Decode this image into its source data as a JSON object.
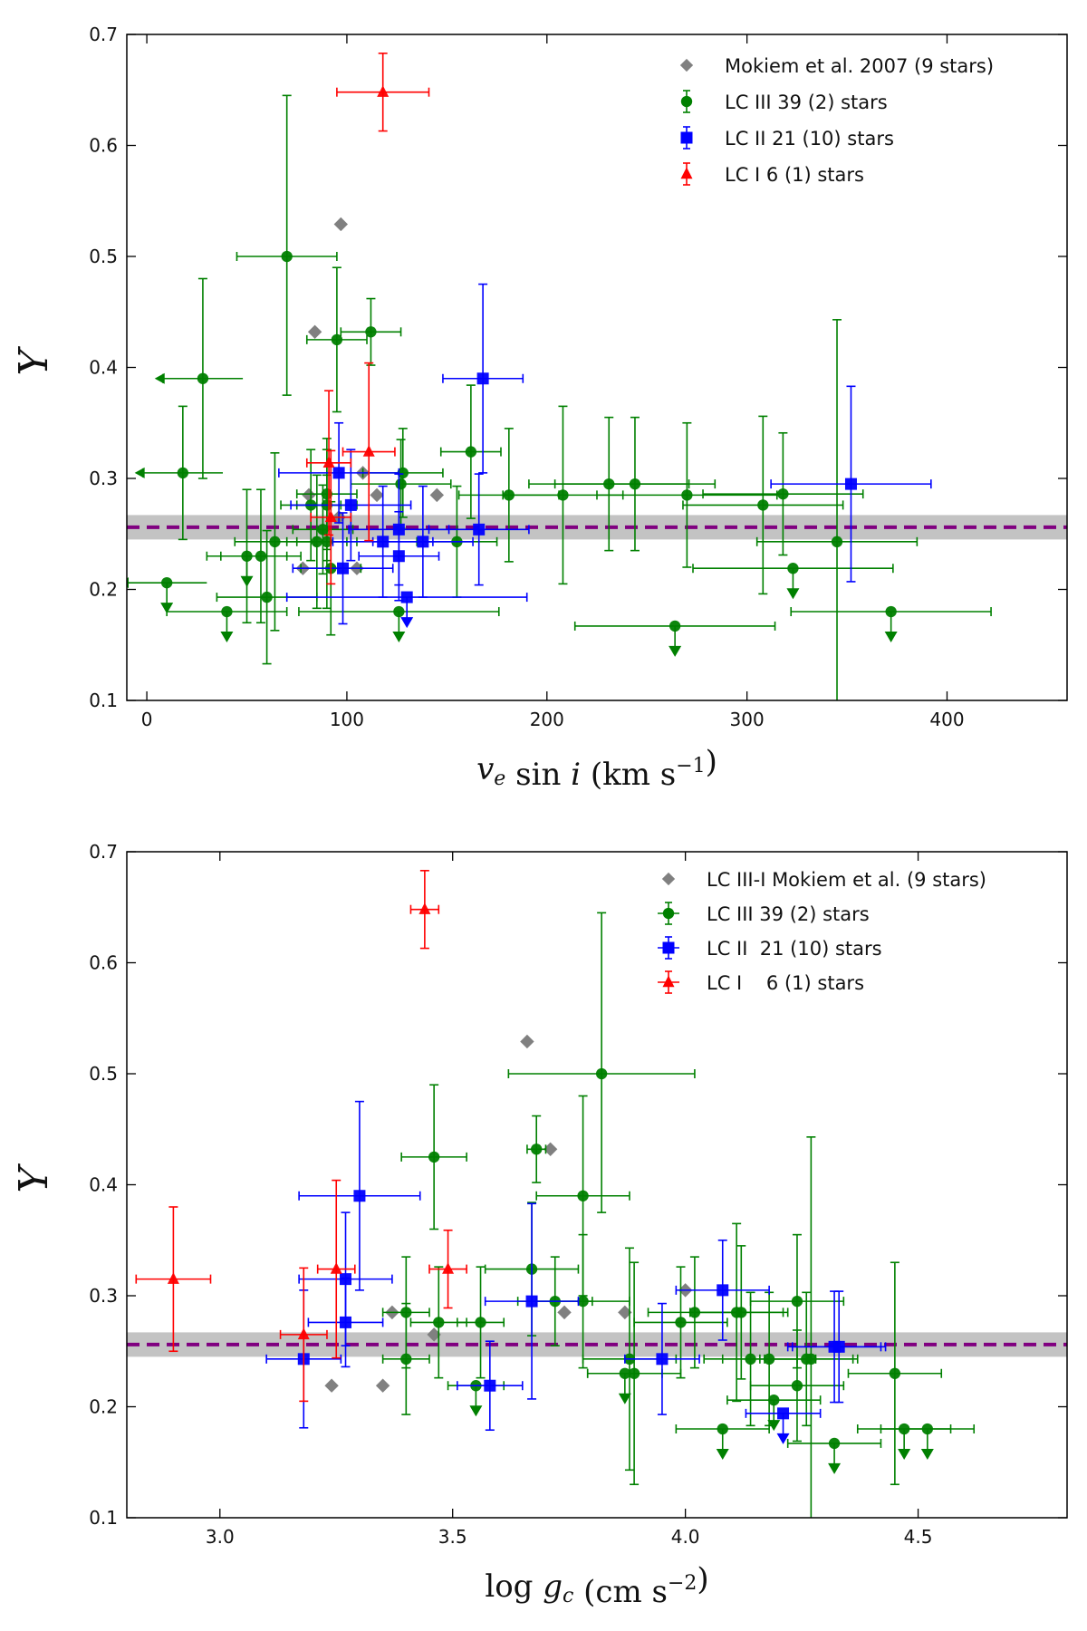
{
  "chart_data": [
    {
      "type": "scatter",
      "title": "",
      "xlabel": "v_e sin i (km s^-1)",
      "ylabel": "Y",
      "xlim": [
        -10,
        460
      ],
      "ylim": [
        0.1,
        0.7
      ],
      "xticks": [
        0,
        100,
        200,
        300,
        400
      ],
      "yticks": [
        0.1,
        0.2,
        0.3,
        0.4,
        0.5,
        0.6,
        0.7
      ],
      "reference_line": {
        "y": 0.256,
        "band": [
          0.245,
          0.267
        ],
        "color": "#800080",
        "style": "dashed"
      },
      "legend_position": "top-right",
      "series": [
        {
          "name": "Mokiem et al. 2007 (9 stars)",
          "marker": "diamond",
          "color": "#808080",
          "points": [
            {
              "x": 97,
              "y": 0.529
            },
            {
              "x": 84,
              "y": 0.432
            },
            {
              "x": 81,
              "y": 0.285
            },
            {
              "x": 108,
              "y": 0.305
            },
            {
              "x": 115,
              "y": 0.285
            },
            {
              "x": 145,
              "y": 0.285
            },
            {
              "x": 78,
              "y": 0.219
            },
            {
              "x": 105,
              "y": 0.219
            },
            {
              "x": 96,
              "y": 0.265
            }
          ]
        },
        {
          "name": "LC III 39 (2) stars",
          "marker": "circle",
          "color": "#008000",
          "points": [
            {
              "x": 70,
              "y": 0.5,
              "xerr": 25,
              "yerr": [
                0.125,
                0.145
              ]
            },
            {
              "x": 28,
              "y": 0.39,
              "xerr": 20,
              "yerr": 0.09,
              "xupper": true
            },
            {
              "x": 95,
              "y": 0.425,
              "xerr": 15,
              "yerr": 0.065
            },
            {
              "x": 112,
              "y": 0.432,
              "xerr": 15,
              "yerr": 0.03
            },
            {
              "x": 18,
              "y": 0.305,
              "xerr": 20,
              "yerr": 0.06,
              "xupper": true
            },
            {
              "x": 82,
              "y": 0.276,
              "xerr": 15,
              "yerr": 0.05
            },
            {
              "x": 90,
              "y": 0.276,
              "xerr": 15,
              "yerr": 0.05
            },
            {
              "x": 90,
              "y": 0.286,
              "xerr": 15,
              "yerr": 0.05
            },
            {
              "x": 128,
              "y": 0.305,
              "xerr": 20,
              "yerr": 0.04
            },
            {
              "x": 127,
              "y": 0.295,
              "xerr": 25,
              "yerr": 0.04
            },
            {
              "x": 162,
              "y": 0.324,
              "xerr": 15,
              "yerr": 0.06
            },
            {
              "x": 181,
              "y": 0.285,
              "xerr": 25,
              "yerr": 0.06
            },
            {
              "x": 208,
              "y": 0.285,
              "xerr": 30,
              "yerr": 0.08
            },
            {
              "x": 231,
              "y": 0.295,
              "xerr": 40,
              "yerr": 0.06
            },
            {
              "x": 244,
              "y": 0.295,
              "xerr": 40,
              "yerr": 0.06
            },
            {
              "x": 270,
              "y": 0.285,
              "xerr": 45,
              "yerr": 0.065
            },
            {
              "x": 308,
              "y": 0.276,
              "xerr": 40,
              "yerr": 0.08
            },
            {
              "x": 318,
              "y": 0.286,
              "xerr": 40,
              "yerr": 0.055
            },
            {
              "x": 345,
              "y": 0.243,
              "xerr": 40,
              "yerr": 0.2
            },
            {
              "x": 85,
              "y": 0.243,
              "xerr": 15,
              "yerr": 0.06
            },
            {
              "x": 90,
              "y": 0.243,
              "xerr": 15,
              "yerr": 0.06
            },
            {
              "x": 64,
              "y": 0.243,
              "xerr": 20,
              "yerr": 0.08
            },
            {
              "x": 50,
              "y": 0.23,
              "xerr": 20,
              "yerr": 0.06,
              "upper": true
            },
            {
              "x": 57,
              "y": 0.23,
              "xerr": 20,
              "yerr": 0.06
            },
            {
              "x": 88,
              "y": 0.254,
              "xerr": 15,
              "yerr": 0.04
            },
            {
              "x": 92,
              "y": 0.219,
              "xerr": 15,
              "yerr": 0.06
            },
            {
              "x": 155,
              "y": 0.243,
              "xerr": 20,
              "yerr": 0.05
            },
            {
              "x": 10,
              "y": 0.206,
              "xerr": 20,
              "upper": true,
              "xupper": true
            },
            {
              "x": 60,
              "y": 0.193,
              "xerr": 25,
              "yerr": 0.06
            },
            {
              "x": 40,
              "y": 0.18,
              "xerr": 30,
              "upper": true
            },
            {
              "x": 126,
              "y": 0.18,
              "xerr": 50,
              "upper": true
            },
            {
              "x": 264,
              "y": 0.167,
              "xerr": 50,
              "upper": true
            },
            {
              "x": 323,
              "y": 0.219,
              "xerr": 50,
              "upper": true
            },
            {
              "x": 372,
              "y": 0.18,
              "xerr": 50,
              "upper": true
            }
          ]
        },
        {
          "name": "LC II 21 (10) stars",
          "marker": "square",
          "color": "#0000ff",
          "points": [
            {
              "x": 168,
              "y": 0.39,
              "xerr": 20,
              "yerr": 0.085
            },
            {
              "x": 352,
              "y": 0.295,
              "xerr": 40,
              "yerr": 0.088
            },
            {
              "x": 96,
              "y": 0.305,
              "xerr": 30,
              "yerr": 0.045
            },
            {
              "x": 102,
              "y": 0.276,
              "xerr": 30,
              "yerr": 0.05
            },
            {
              "x": 126,
              "y": 0.254,
              "xerr": 25,
              "yerr": 0.05
            },
            {
              "x": 118,
              "y": 0.243,
              "xerr": 25,
              "yerr": 0.05
            },
            {
              "x": 138,
              "y": 0.243,
              "xerr": 25,
              "yerr": 0.05
            },
            {
              "x": 166,
              "y": 0.254,
              "xerr": 25,
              "yerr": 0.05
            },
            {
              "x": 98,
              "y": 0.219,
              "xerr": 25,
              "yerr": 0.05
            },
            {
              "x": 130,
              "y": 0.193,
              "xerr": 60,
              "upper": true
            },
            {
              "x": 126,
              "y": 0.23,
              "xerr": 20,
              "yerr": 0.04
            }
          ]
        },
        {
          "name": "LC I 6 (1) stars",
          "marker": "triangle",
          "color": "#ff0000",
          "points": [
            {
              "x": 118,
              "y": 0.648,
              "xerr": 23,
              "yerr": 0.035
            },
            {
              "x": 111,
              "y": 0.324,
              "xerr": 13,
              "yerr": 0.08
            },
            {
              "x": 91,
              "y": 0.314,
              "xerr": 11,
              "yerr": 0.065
            },
            {
              "x": 92,
              "y": 0.265,
              "xerr": 10,
              "yerr": 0.06
            }
          ]
        }
      ]
    },
    {
      "type": "scatter",
      "title": "",
      "xlabel": "log g_c (cm s^-2)",
      "ylabel": "Y",
      "xlim": [
        2.8,
        4.82
      ],
      "ylim": [
        0.1,
        0.7
      ],
      "xticks": [
        3.0,
        3.5,
        4.0,
        4.5
      ],
      "yticks": [
        0.1,
        0.2,
        0.3,
        0.4,
        0.5,
        0.6,
        0.7
      ],
      "reference_line": {
        "y": 0.256,
        "band": [
          0.245,
          0.267
        ],
        "color": "#800080",
        "style": "dashed"
      },
      "legend_position": "top-right",
      "series": [
        {
          "name": "LC III-I Mokiem et al. (9 stars)",
          "marker": "diamond",
          "color": "#808080",
          "points": [
            {
              "x": 3.66,
              "y": 0.529
            },
            {
              "x": 3.71,
              "y": 0.432
            },
            {
              "x": 3.37,
              "y": 0.285
            },
            {
              "x": 3.74,
              "y": 0.285
            },
            {
              "x": 3.87,
              "y": 0.285
            },
            {
              "x": 3.46,
              "y": 0.265
            },
            {
              "x": 3.24,
              "y": 0.219
            },
            {
              "x": 3.35,
              "y": 0.219
            },
            {
              "x": 4.0,
              "y": 0.305
            }
          ]
        },
        {
          "name": "LC III 39 (2) stars",
          "marker": "circle",
          "color": "#008000",
          "points": [
            {
              "x": 3.82,
              "y": 0.5,
              "xerr": 0.2,
              "yerr": [
                0.125,
                0.145
              ]
            },
            {
              "x": 3.46,
              "y": 0.425,
              "xerr": 0.07,
              "yerr": 0.065
            },
            {
              "x": 3.68,
              "y": 0.432,
              "xerr": 0.02,
              "yerr": 0.03
            },
            {
              "x": 3.78,
              "y": 0.39,
              "xerr": 0.1,
              "yerr": 0.09
            },
            {
              "x": 3.67,
              "y": 0.324,
              "xerr": 0.1,
              "yerr": 0.06
            },
            {
              "x": 3.4,
              "y": 0.285,
              "xerr": 0.05,
              "yerr": 0.05
            },
            {
              "x": 3.47,
              "y": 0.276,
              "xerr": 0.06,
              "yerr": 0.05
            },
            {
              "x": 3.56,
              "y": 0.276,
              "xerr": 0.05,
              "yerr": 0.05
            },
            {
              "x": 3.72,
              "y": 0.295,
              "xerr": 0.08,
              "yerr": 0.04
            },
            {
              "x": 3.78,
              "y": 0.295,
              "xerr": 0.1,
              "yerr": 0.06
            },
            {
              "x": 3.4,
              "y": 0.243,
              "xerr": 0.05,
              "yerr": 0.05
            },
            {
              "x": 3.55,
              "y": 0.219,
              "xerr": 0.06,
              "upper": true
            },
            {
              "x": 3.88,
              "y": 0.243,
              "xerr": 0.1,
              "yerr": 0.1
            },
            {
              "x": 3.89,
              "y": 0.23,
              "xerr": 0.1,
              "yerr": 0.1
            },
            {
              "x": 3.87,
              "y": 0.23,
              "xerr": 0.08,
              "upper": true
            },
            {
              "x": 3.99,
              "y": 0.276,
              "xerr": 0.1,
              "yerr": 0.05
            },
            {
              "x": 4.02,
              "y": 0.285,
              "xerr": 0.1,
              "yerr": 0.05
            },
            {
              "x": 4.11,
              "y": 0.285,
              "xerr": 0.1,
              "yerr": 0.08
            },
            {
              "x": 4.12,
              "y": 0.285,
              "xerr": 0.1,
              "yerr": 0.06
            },
            {
              "x": 4.24,
              "y": 0.295,
              "xerr": 0.1,
              "yerr": 0.06
            },
            {
              "x": 4.14,
              "y": 0.243,
              "xerr": 0.1,
              "yerr": 0.06
            },
            {
              "x": 4.18,
              "y": 0.243,
              "xerr": 0.1,
              "yerr": 0.06
            },
            {
              "x": 4.26,
              "y": 0.243,
              "xerr": 0.1,
              "yerr": 0.06
            },
            {
              "x": 4.27,
              "y": 0.243,
              "xerr": 0.1,
              "yerr": 0.2
            },
            {
              "x": 4.19,
              "y": 0.206,
              "xerr": 0.1,
              "upper": true
            },
            {
              "x": 4.24,
              "y": 0.219,
              "xerr": 0.1,
              "yerr": 0.05
            },
            {
              "x": 4.45,
              "y": 0.23,
              "xerr": 0.1,
              "yerr": 0.1
            },
            {
              "x": 4.08,
              "y": 0.18,
              "xerr": 0.1,
              "upper": true
            },
            {
              "x": 4.32,
              "y": 0.167,
              "xerr": 0.1,
              "upper": true
            },
            {
              "x": 4.47,
              "y": 0.18,
              "xerr": 0.1,
              "upper": true
            },
            {
              "x": 4.52,
              "y": 0.18,
              "xerr": 0.1,
              "upper": true
            }
          ]
        },
        {
          "name": "LC II  21 (10) stars",
          "marker": "square",
          "color": "#0000ff",
          "points": [
            {
              "x": 3.3,
              "y": 0.39,
              "xerr": 0.13,
              "yerr": 0.085
            },
            {
              "x": 3.27,
              "y": 0.315,
              "xerr": 0.1,
              "yerr": 0.06
            },
            {
              "x": 3.27,
              "y": 0.276,
              "xerr": 0.08,
              "yerr": 0.04
            },
            {
              "x": 3.18,
              "y": 0.243,
              "xerr": 0.08,
              "yerr": 0.062
            },
            {
              "x": 3.58,
              "y": 0.219,
              "xerr": 0.07,
              "yerr": 0.04
            },
            {
              "x": 3.67,
              "y": 0.295,
              "xerr": 0.1,
              "yerr": 0.088
            },
            {
              "x": 3.95,
              "y": 0.243,
              "xerr": 0.08,
              "yerr": 0.05
            },
            {
              "x": 4.08,
              "y": 0.305,
              "xerr": 0.1,
              "yerr": 0.045
            },
            {
              "x": 4.21,
              "y": 0.194,
              "xerr": 0.08,
              "upper": true
            },
            {
              "x": 4.32,
              "y": 0.254,
              "xerr": 0.1,
              "yerr": 0.05
            },
            {
              "x": 4.33,
              "y": 0.254,
              "xerr": 0.1,
              "yerr": 0.05
            }
          ]
        },
        {
          "name": "LC I    6 (1) stars",
          "marker": "triangle",
          "color": "#ff0000",
          "points": [
            {
              "x": 3.44,
              "y": 0.648,
              "xerr": 0.03,
              "yerr": 0.035
            },
            {
              "x": 2.9,
              "y": 0.315,
              "xerr": 0.08,
              "yerr": 0.065
            },
            {
              "x": 3.25,
              "y": 0.324,
              "xerr": 0.04,
              "yerr": 0.08
            },
            {
              "x": 3.49,
              "y": 0.324,
              "xerr": 0.04,
              "yerr": 0.035
            },
            {
              "x": 3.18,
              "y": 0.265,
              "xerr": 0.05,
              "yerr": 0.06
            }
          ]
        }
      ]
    }
  ]
}
